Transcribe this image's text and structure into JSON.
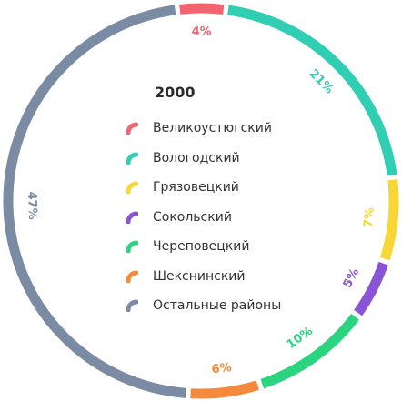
{
  "chart_data": {
    "type": "pie",
    "title": "2000",
    "legend_position": "center",
    "series": [
      {
        "name": "Великоустюгский",
        "value": 4,
        "label": "4%",
        "color": "#f2646f"
      },
      {
        "name": "Вологодский",
        "value": 21,
        "label": "21%",
        "color": "#30cfb3"
      },
      {
        "name": "Грязовецкий",
        "value": 7,
        "label": "7%",
        "color": "#f7d736"
      },
      {
        "name": "Сокольский",
        "value": 5,
        "label": "5%",
        "color": "#8a54d6"
      },
      {
        "name": "Череповецкий",
        "value": 10,
        "label": "10%",
        "color": "#2bd47f"
      },
      {
        "name": "Шекснинский",
        "value": 6,
        "label": "6%",
        "color": "#f58a3c"
      },
      {
        "name": "Остальные районы",
        "value": 47,
        "label": "47%",
        "color": "#7b8ba3"
      }
    ]
  }
}
